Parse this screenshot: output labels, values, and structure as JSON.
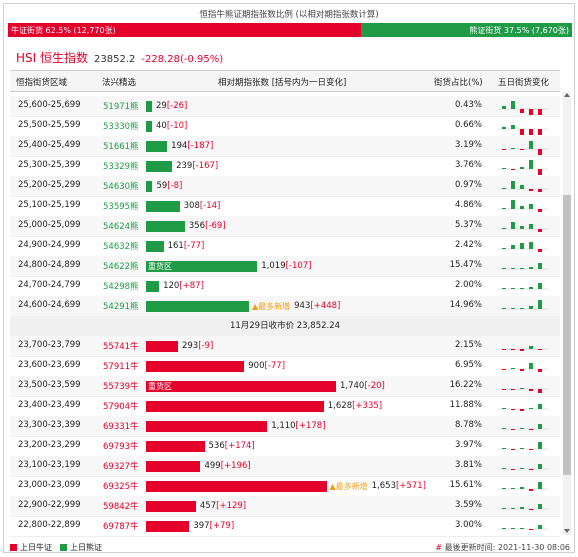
{
  "title": "恒指牛熊证期指张数比例 (以相对期指张数计算)",
  "ratio": {
    "bull_label": "牛证街货 62.5% (12,770张)",
    "bear_label": "熊证街货 37.5% (7,670张)",
    "bull_fraction": 0.625
  },
  "hsi": {
    "name": "HSI 恒生指数",
    "value": "23852.2",
    "change": "-228.28(-0.95%)"
  },
  "columns": {
    "range": "恒指街货区域",
    "code": "法兴精选",
    "bar": "相对期指张数 [括号内为一日变化]",
    "pct": "街货占比(%)",
    "spark": "五日街货变化"
  },
  "tags": {
    "heavy": "重货区",
    "most_new": "▲最多新增"
  },
  "close_label": "11月29日收市价 23,852.24",
  "bear_rows": [
    {
      "range": "25,600-25,699",
      "code": "51971熊",
      "value": 29,
      "num": "29",
      "chg": "[-26]",
      "pct": "0.43%",
      "tag": "",
      "spark": [
        3,
        8,
        -4,
        -10,
        -6
      ]
    },
    {
      "range": "25,500-25,599",
      "code": "53330熊",
      "value": 40,
      "num": "40",
      "chg": "[-10]",
      "pct": "0.66%",
      "tag": "",
      "spark": [
        2,
        4,
        -7,
        -10,
        -9
      ]
    },
    {
      "range": "25,400-25,499",
      "code": "51661熊",
      "value": 194,
      "num": "194",
      "chg": "[-187]",
      "pct": "3.19%",
      "tag": "",
      "spark": [
        -1,
        1,
        -1,
        8,
        -10
      ]
    },
    {
      "range": "25,300-25,399",
      "code": "53329熊",
      "value": 239,
      "num": "239",
      "chg": "[-167]",
      "pct": "3.76%",
      "tag": "",
      "spark": [
        1,
        -1,
        2,
        9,
        -8
      ]
    },
    {
      "range": "25,200-25,299",
      "code": "54630熊",
      "value": 59,
      "num": "59",
      "chg": "[-8]",
      "pct": "0.97%",
      "tag": "",
      "spark": [
        1,
        8,
        4,
        -2,
        -3
      ]
    },
    {
      "range": "25,100-25,199",
      "code": "53595熊",
      "value": 308,
      "num": "308",
      "chg": "[-14]",
      "pct": "4.86%",
      "tag": "",
      "spark": [
        1,
        9,
        3,
        5,
        -3
      ]
    },
    {
      "range": "25,000-25,099",
      "code": "54624熊",
      "value": 356,
      "num": "356",
      "chg": "[-69]",
      "pct": "5.37%",
      "tag": "",
      "spark": [
        1,
        7,
        3,
        5,
        -3
      ]
    },
    {
      "range": "24,900-24,999",
      "code": "54632熊",
      "value": 161,
      "num": "161",
      "chg": "[-77]",
      "pct": "2.42%",
      "tag": "",
      "spark": [
        1,
        4,
        6,
        7,
        -3
      ]
    },
    {
      "range": "24,800-24,899",
      "code": "54622熊",
      "value": 1019,
      "num": "1,019",
      "chg": "[-107]",
      "pct": "15.47%",
      "tag": "heavy",
      "spark": [
        1,
        1,
        1,
        2,
        6
      ]
    },
    {
      "range": "24,700-24,799",
      "code": "54298熊",
      "value": 120,
      "num": "120",
      "chg": "[+87]",
      "pct": "2.00%",
      "tag": "",
      "spark": [
        1,
        1,
        1,
        2,
        6
      ]
    },
    {
      "range": "24,600-24,699",
      "code": "54291熊",
      "value": 943,
      "num": "943",
      "chg": "[+448]",
      "pct": "14.96%",
      "tag": "most_new",
      "spark": [
        1,
        1,
        1,
        3,
        9
      ]
    }
  ],
  "bull_rows": [
    {
      "range": "23,700-23,799",
      "code": "55741牛",
      "value": 293,
      "num": "293",
      "chg": "[-9]",
      "pct": "2.15%",
      "tag": "",
      "spark": [
        -1,
        -1,
        -2,
        3,
        -1
      ]
    },
    {
      "range": "23,600-23,699",
      "code": "57911牛",
      "value": 900,
      "num": "900",
      "chg": "[-77]",
      "pct": "6.95%",
      "tag": "",
      "spark": [
        -1,
        1,
        -2,
        6,
        -3
      ]
    },
    {
      "range": "23,500-23,599",
      "code": "55739牛",
      "value": 1740,
      "num": "1,740",
      "chg": "[-20]",
      "pct": "16.22%",
      "tag": "heavy",
      "spark": [
        -1,
        -1,
        1,
        -2,
        -4
      ]
    },
    {
      "range": "23,400-23,499",
      "code": "57904牛",
      "value": 1628,
      "num": "1,628",
      "chg": "[+335]",
      "pct": "11.88%",
      "tag": "",
      "spark": [
        1,
        -1,
        -2,
        1,
        5
      ]
    },
    {
      "range": "23,300-23,399",
      "code": "69331牛",
      "value": 1110,
      "num": "1,110",
      "chg": "[+178]",
      "pct": "8.78%",
      "tag": "",
      "spark": [
        1,
        -1,
        1,
        -1,
        5
      ]
    },
    {
      "range": "23,200-23,299",
      "code": "69793牛",
      "value": 536,
      "num": "536",
      "chg": "[+174]",
      "pct": "3.97%",
      "tag": "",
      "spark": [
        1,
        -1,
        1,
        -1,
        7
      ]
    },
    {
      "range": "23,100-23,199",
      "code": "69327牛",
      "value": 499,
      "num": "499",
      "chg": "[+196]",
      "pct": "3.81%",
      "tag": "",
      "spark": [
        1,
        -1,
        1,
        -1,
        5
      ]
    },
    {
      "range": "23,000-23,099",
      "code": "69325牛",
      "value": 1653,
      "num": "1,653",
      "chg": "[+571]",
      "pct": "15.61%",
      "tag": "most_new",
      "spark": [
        1,
        1,
        2,
        -2,
        7
      ]
    },
    {
      "range": "22,900-22,999",
      "code": "59842牛",
      "value": 457,
      "num": "457",
      "chg": "[+129]",
      "pct": "3.59%",
      "tag": "",
      "spark": [
        1,
        1,
        2,
        -1,
        5
      ]
    },
    {
      "range": "22,800-22,899",
      "code": "69787牛",
      "value": 397,
      "num": "397",
      "chg": "[+79]",
      "pct": "3.00%",
      "tag": "",
      "spark": [
        1,
        1,
        1,
        -1,
        4
      ]
    }
  ],
  "legend": {
    "bull": "上日牛证",
    "bear": "上日熊证"
  },
  "update": {
    "hash": "#",
    "label": "最後更新时间: 2021-11-30 08:06"
  },
  "colors": {
    "bull": "#e5002b",
    "bear": "#1f9b46",
    "tag_new": "#f39c12"
  }
}
